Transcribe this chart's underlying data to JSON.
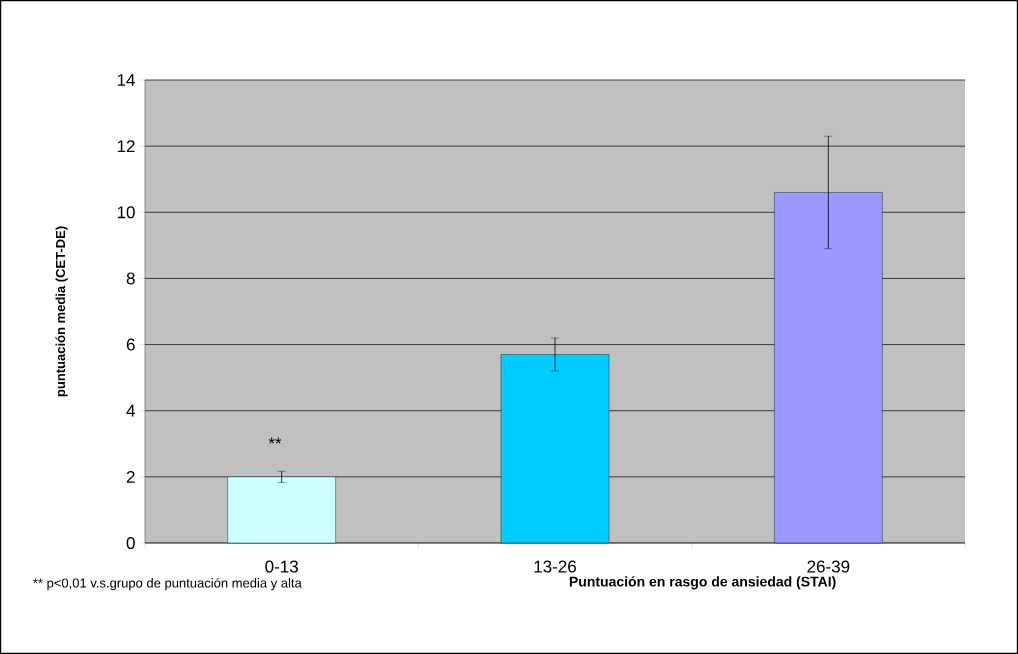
{
  "chart_data": {
    "type": "bar",
    "xlabel": "Puntuación en rasgo de ansiedad (STAI)",
    "ylabel": "puntuación media (CET-DE)",
    "categories": [
      "0-13",
      "13-26",
      "26-39"
    ],
    "values": [
      2.0,
      5.7,
      10.6
    ],
    "errors": [
      0.17,
      0.5,
      1.7
    ],
    "colors": [
      "#ccffff",
      "#00ccff",
      "#9999ff"
    ],
    "ylim": [
      0,
      14
    ],
    "yticks": [
      0,
      2,
      4,
      6,
      8,
      10,
      12,
      14
    ],
    "grid": "y",
    "annotations": [
      "**",
      "** p<0,01 v.s.grupo de puntuación media y alta"
    ]
  }
}
